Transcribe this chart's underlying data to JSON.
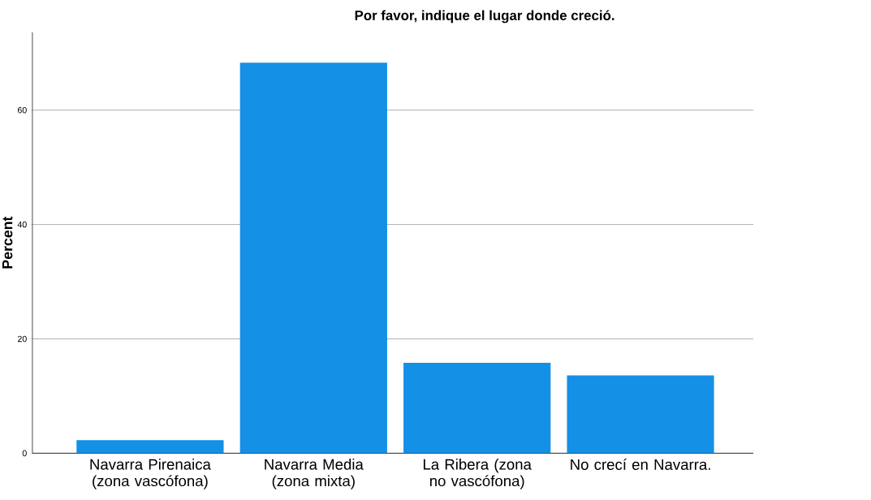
{
  "chart_data": {
    "type": "bar",
    "title": "Por favor, indique el lugar donde creció.",
    "ylabel": "Percent",
    "categories": [
      "Navarra Pirenaica (zona vascófona)",
      "Navarra Media (zona mixta)",
      "La Ribera (zona no vascófona)",
      "No crecí en Navarra."
    ],
    "values": [
      2.3,
      68.3,
      15.8,
      13.6
    ],
    "color": "#1490e6",
    "ylim": [
      0,
      73.6
    ],
    "yticks": [
      0,
      20,
      40,
      60
    ],
    "grid": "y"
  }
}
